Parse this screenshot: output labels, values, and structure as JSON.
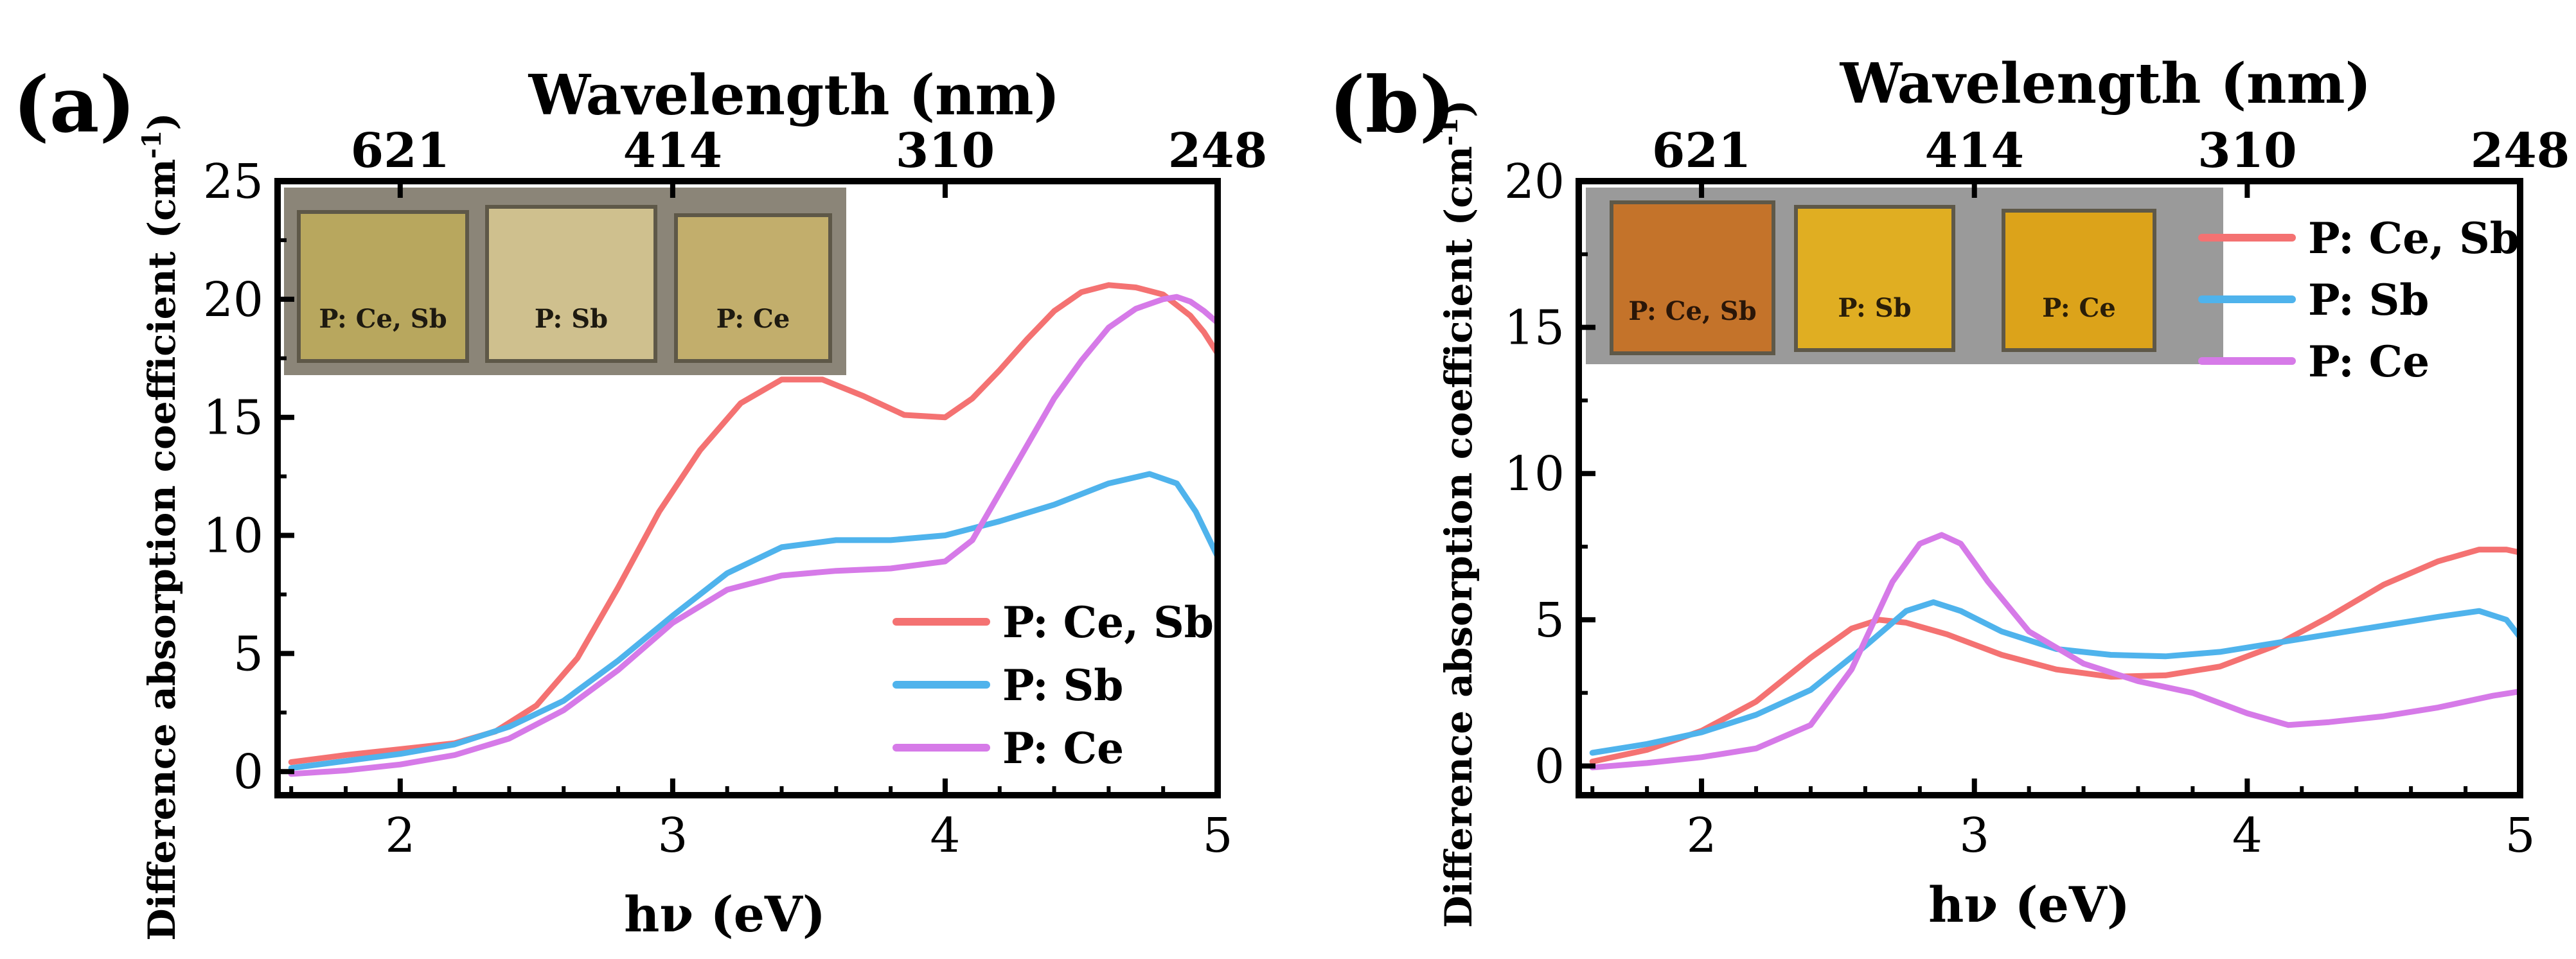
{
  "chart_data": [
    {
      "type": "line",
      "panel_label": "(a)",
      "xlabel": "hν (eV)",
      "ylabel": "Difference absorption coefficient (cm⁻¹)",
      "ylabel_base": "Difference absorption coefficient (cm",
      "ylabel_sup": "-1",
      "ylabel_close": ")",
      "top_axis_label": "Wavelength (nm)",
      "top_ticks": [
        {
          "label": "621",
          "ev": 2.0
        },
        {
          "label": "414",
          "ev": 3.0
        },
        {
          "label": "310",
          "ev": 4.0
        },
        {
          "label": "248",
          "ev": 5.0
        }
      ],
      "xlim": [
        1.55,
        5.0
      ],
      "ylim": [
        -1.0,
        25.0
      ],
      "xticks": [
        2,
        3,
        4,
        5
      ],
      "yticks": [
        0,
        5,
        10,
        15,
        20,
        25
      ],
      "legend": "bottom-right",
      "inset_labels": [
        "P: Ce, Sb",
        "P: Sb",
        "P: Ce"
      ],
      "series": [
        {
          "name": "P: Ce, Sb",
          "color": "#f47272",
          "x": [
            1.6,
            1.8,
            2.0,
            2.2,
            2.35,
            2.5,
            2.65,
            2.8,
            2.95,
            3.1,
            3.25,
            3.4,
            3.55,
            3.7,
            3.85,
            4.0,
            4.1,
            4.2,
            4.3,
            4.4,
            4.5,
            4.6,
            4.7,
            4.8,
            4.9,
            4.95,
            5.0
          ],
          "y": [
            0.4,
            0.7,
            0.95,
            1.2,
            1.7,
            2.8,
            4.8,
            7.8,
            11.0,
            13.6,
            15.6,
            16.6,
            16.6,
            15.9,
            15.1,
            15.0,
            15.8,
            17.0,
            18.3,
            19.5,
            20.3,
            20.6,
            20.5,
            20.2,
            19.3,
            18.6,
            17.7
          ]
        },
        {
          "name": "P: Sb",
          "color": "#4fb3ec",
          "x": [
            1.6,
            1.8,
            2.0,
            2.2,
            2.4,
            2.6,
            2.8,
            3.0,
            3.2,
            3.4,
            3.6,
            3.8,
            4.0,
            4.2,
            4.4,
            4.6,
            4.75,
            4.85,
            4.92,
            5.0
          ],
          "y": [
            0.15,
            0.45,
            0.75,
            1.15,
            1.9,
            3.0,
            4.7,
            6.6,
            8.4,
            9.5,
            9.8,
            9.8,
            10.0,
            10.6,
            11.3,
            12.2,
            12.6,
            12.2,
            11.0,
            9.1
          ]
        },
        {
          "name": "P: Ce",
          "color": "#d67ae8",
          "x": [
            1.6,
            1.8,
            2.0,
            2.2,
            2.4,
            2.6,
            2.8,
            3.0,
            3.2,
            3.4,
            3.6,
            3.8,
            4.0,
            4.1,
            4.2,
            4.3,
            4.4,
            4.5,
            4.6,
            4.7,
            4.8,
            4.85,
            4.9,
            4.95,
            5.0
          ],
          "y": [
            -0.1,
            0.05,
            0.3,
            0.7,
            1.4,
            2.6,
            4.3,
            6.3,
            7.7,
            8.3,
            8.5,
            8.6,
            8.9,
            9.8,
            11.8,
            13.8,
            15.8,
            17.4,
            18.8,
            19.6,
            20.0,
            20.1,
            19.9,
            19.5,
            19.0
          ]
        }
      ]
    },
    {
      "type": "line",
      "panel_label": "(b)",
      "xlabel": "hν (eV)",
      "ylabel": "Difference absorption coefficient (cm⁻¹)",
      "ylabel_base": "Difference absorption coefficient (cm",
      "ylabel_sup": "-1",
      "ylabel_close": ")",
      "top_axis_label": "Wavelength (nm)",
      "top_ticks": [
        {
          "label": "621",
          "ev": 2.0
        },
        {
          "label": "414",
          "ev": 3.0
        },
        {
          "label": "310",
          "ev": 4.0
        },
        {
          "label": "248",
          "ev": 5.0
        }
      ],
      "xlim": [
        1.55,
        5.0
      ],
      "ylim": [
        -1.0,
        20.0
      ],
      "xticks": [
        2,
        3,
        4,
        5
      ],
      "yticks": [
        0,
        5,
        10,
        15,
        20
      ],
      "legend": "top-right",
      "inset_labels": [
        "P: Ce, Sb",
        "P: Sb",
        "P: Ce"
      ],
      "series": [
        {
          "name": "P: Ce, Sb",
          "color": "#f47272",
          "x": [
            1.6,
            1.8,
            2.0,
            2.2,
            2.4,
            2.55,
            2.65,
            2.75,
            2.9,
            3.1,
            3.3,
            3.5,
            3.7,
            3.9,
            4.1,
            4.3,
            4.5,
            4.7,
            4.85,
            4.95,
            5.0
          ],
          "y": [
            0.15,
            0.55,
            1.2,
            2.2,
            3.7,
            4.7,
            5.0,
            4.9,
            4.5,
            3.8,
            3.3,
            3.05,
            3.1,
            3.4,
            4.1,
            5.1,
            6.2,
            7.0,
            7.4,
            7.4,
            7.3
          ]
        },
        {
          "name": "P: Sb",
          "color": "#4fb3ec",
          "x": [
            1.6,
            1.8,
            2.0,
            2.2,
            2.4,
            2.6,
            2.75,
            2.85,
            2.95,
            3.1,
            3.3,
            3.5,
            3.7,
            3.9,
            4.1,
            4.3,
            4.5,
            4.7,
            4.85,
            4.95,
            5.0
          ],
          "y": [
            0.45,
            0.75,
            1.15,
            1.75,
            2.6,
            4.1,
            5.3,
            5.6,
            5.3,
            4.6,
            4.0,
            3.8,
            3.75,
            3.9,
            4.2,
            4.5,
            4.8,
            5.1,
            5.3,
            5.0,
            4.4
          ]
        },
        {
          "name": "P: Ce",
          "color": "#d67ae8",
          "x": [
            1.6,
            1.8,
            2.0,
            2.2,
            2.4,
            2.55,
            2.7,
            2.8,
            2.88,
            2.95,
            3.05,
            3.2,
            3.4,
            3.6,
            3.8,
            4.0,
            4.15,
            4.3,
            4.5,
            4.7,
            4.9,
            5.0
          ],
          "y": [
            -0.05,
            0.1,
            0.3,
            0.6,
            1.4,
            3.3,
            6.3,
            7.6,
            7.9,
            7.6,
            6.3,
            4.6,
            3.5,
            2.9,
            2.5,
            1.8,
            1.4,
            1.5,
            1.7,
            2.0,
            2.4,
            2.55
          ]
        }
      ]
    }
  ]
}
